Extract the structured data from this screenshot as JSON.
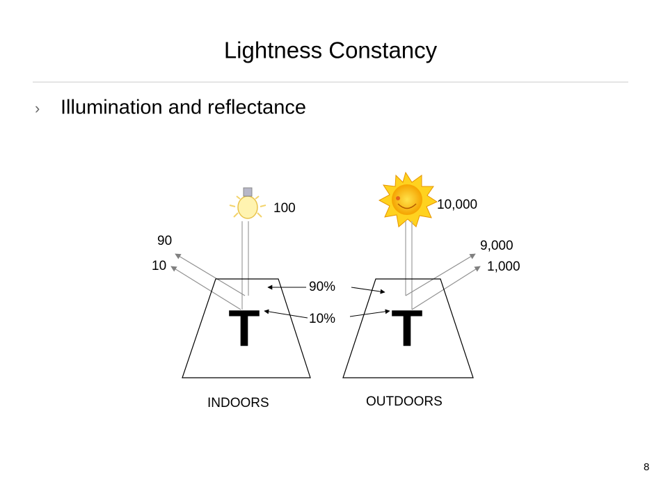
{
  "header": {
    "title": "Lightness Constancy",
    "bullet": "Illumination and reflectance"
  },
  "indoors": {
    "label": "INDOORS",
    "illumination": "100",
    "reflected_high": "90",
    "reflected_low": "10",
    "letter": "T"
  },
  "outdoors": {
    "label": "OUTDOORS",
    "illumination": "10,000",
    "reflected_high": "9,000",
    "reflected_low": "1,000",
    "letter": "T"
  },
  "reflectance": {
    "high": "90%",
    "low": "10%"
  },
  "footer": {
    "page_number": "8"
  }
}
